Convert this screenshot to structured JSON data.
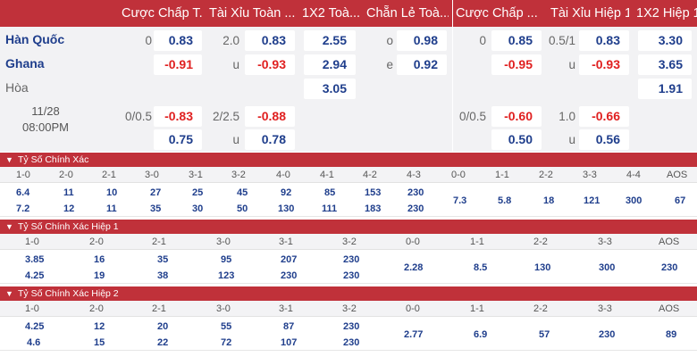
{
  "headers": [
    "Cược Chấp T...",
    "Tài Xỉu Toàn ...",
    "1X2 Toà...",
    "Chẵn Lẻ Toà...",
    "Cược Chấp ...",
    "Tài Xỉu Hiệp 1",
    "1X2 Hiệp 1"
  ],
  "match": {
    "home": "Hàn Quốc",
    "away": "Ghana",
    "draw": "Hòa",
    "date": "11/28",
    "time": "08:00PM"
  },
  "main": {
    "hcp_ft": "0",
    "hcp_home": "0.83",
    "hcp_away": "-0.91",
    "ou_line": "2.0",
    "ou_over": "0.83",
    "ou_u_label": "u",
    "ou_under": "-0.93",
    "x12_home": "2.55",
    "x12_away": "2.94",
    "x12_draw": "3.05",
    "oe_o_label": "o",
    "oe_odd": "0.98",
    "oe_e_label": "e",
    "oe_even": "0.92",
    "h1_hcp": "0",
    "h1_hcp_home": "0.85",
    "h1_hcp_away": "-0.95",
    "h1_ou_line": "0.5/1",
    "h1_ou_over": "0.83",
    "h1_u_label": "u",
    "h1_ou_under": "-0.93",
    "h1_x12_home": "3.30",
    "h1_x12_away": "3.65",
    "h1_x12_draw": "1.91"
  },
  "alt": {
    "hcp_ft": "0/0.5",
    "hcp_home": "-0.83",
    "hcp_away": "0.75",
    "ou_line": "2/2.5",
    "ou_over": "-0.88",
    "ou_u_label": "u",
    "ou_under": "0.78",
    "h1_hcp": "0/0.5",
    "h1_hcp_home": "-0.60",
    "h1_hcp_away": "0.50",
    "h1_ou_line": "1.0",
    "h1_ou_over": "-0.66",
    "h1_u_label": "u",
    "h1_ou_under": "0.56"
  },
  "sections": [
    {
      "title": "Tỷ Số Chính Xác",
      "cols": [
        "1-0",
        "2-0",
        "2-1",
        "3-0",
        "3-1",
        "3-2",
        "4-0",
        "4-1",
        "4-2",
        "4-3",
        "0-0",
        "1-1",
        "2-2",
        "3-3",
        "4-4",
        "AOS"
      ],
      "top": [
        "6.4",
        "11",
        "10",
        "27",
        "25",
        "45",
        "92",
        "85",
        "153",
        "230",
        "7.3",
        "5.8",
        "18",
        "121",
        "300",
        "67"
      ],
      "bottom": [
        "7.2",
        "12",
        "11",
        "35",
        "30",
        "50",
        "130",
        "111",
        "183",
        "230",
        "",
        "",
        "",
        "",
        "",
        ""
      ]
    },
    {
      "title": "Tỷ Số Chính Xác Hiệp 1",
      "cols": [
        "1-0",
        "2-0",
        "2-1",
        "3-0",
        "3-1",
        "3-2",
        "0-0",
        "1-1",
        "2-2",
        "3-3",
        "AOS"
      ],
      "top": [
        "3.85",
        "16",
        "35",
        "95",
        "207",
        "230",
        "2.28",
        "8.5",
        "130",
        "300",
        "230"
      ],
      "bottom": [
        "4.25",
        "19",
        "38",
        "123",
        "230",
        "230",
        "",
        "",
        "",
        "",
        ""
      ]
    },
    {
      "title": "Tỷ Số Chính Xác Hiệp 2",
      "cols": [
        "1-0",
        "2-0",
        "2-1",
        "3-0",
        "3-1",
        "3-2",
        "0-0",
        "1-1",
        "2-2",
        "3-3",
        "AOS"
      ],
      "top": [
        "4.25",
        "12",
        "20",
        "55",
        "87",
        "230",
        "2.77",
        "6.9",
        "57",
        "230",
        "89"
      ],
      "bottom": [
        "4.6",
        "15",
        "22",
        "72",
        "107",
        "230",
        "",
        "",
        "",
        "",
        ""
      ]
    }
  ],
  "colors": {
    "header_red": "#c0313a",
    "team_blue": "#1f3e8c",
    "neg_red": "#e02020"
  }
}
